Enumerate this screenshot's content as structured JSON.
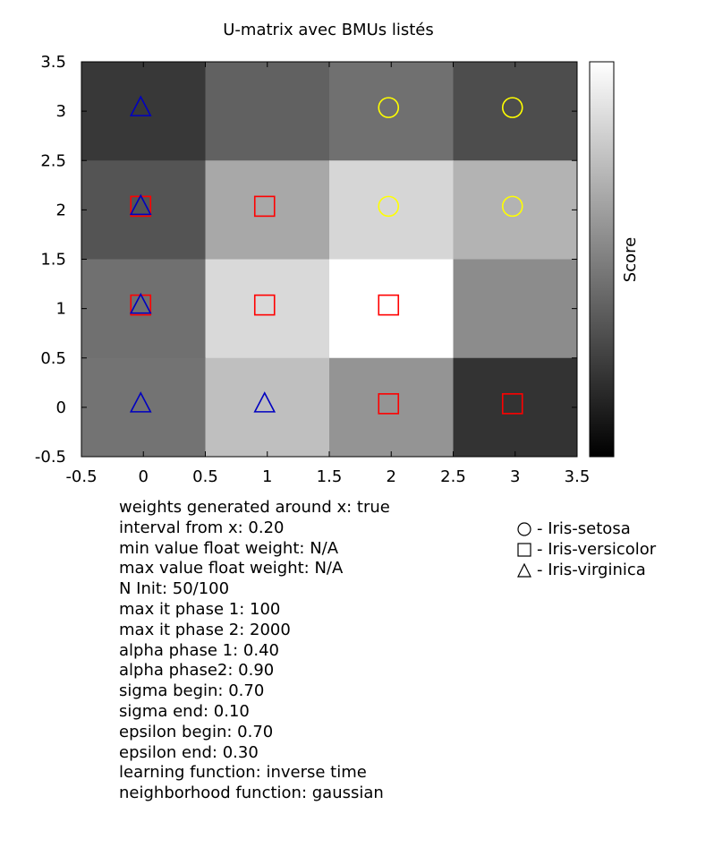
{
  "chart_data": {
    "type": "heatmap",
    "title": "U-matrix avec BMUs listés",
    "colorbar_label": "Score",
    "xlim": [
      -0.5,
      3.5
    ],
    "ylim": [
      -0.5,
      3.5
    ],
    "x_ticks": [
      "-0.5",
      "0",
      "0.5",
      "1",
      "1.5",
      "2",
      "2.5",
      "3",
      "3.5"
    ],
    "y_ticks": [
      "-0.5",
      "0",
      "0.5",
      "1",
      "1.5",
      "2",
      "2.5",
      "3",
      "3.5"
    ],
    "x": [
      0,
      1,
      2,
      3
    ],
    "y": [
      0,
      1,
      2,
      3
    ],
    "gray_levels": [
      [
        0.22,
        0.38,
        0.44,
        0.3
      ],
      [
        0.33,
        0.66,
        0.84,
        0.7
      ],
      [
        0.44,
        0.85,
        1.0,
        0.55
      ],
      [
        0.45,
        0.75,
        0.58,
        0.2
      ]
    ],
    "bmu_markers": [
      {
        "x": 0,
        "y": 3,
        "class": "Iris-virginica"
      },
      {
        "x": 2,
        "y": 3,
        "class": "Iris-setosa"
      },
      {
        "x": 3,
        "y": 3,
        "class": "Iris-setosa"
      },
      {
        "x": 0,
        "y": 2,
        "class": "Iris-versicolor"
      },
      {
        "x": 0,
        "y": 2,
        "class": "Iris-virginica"
      },
      {
        "x": 1,
        "y": 2,
        "class": "Iris-versicolor"
      },
      {
        "x": 2,
        "y": 2,
        "class": "Iris-setosa"
      },
      {
        "x": 3,
        "y": 2,
        "class": "Iris-setosa"
      },
      {
        "x": 0,
        "y": 1,
        "class": "Iris-versicolor"
      },
      {
        "x": 0,
        "y": 1,
        "class": "Iris-virginica"
      },
      {
        "x": 1,
        "y": 1,
        "class": "Iris-versicolor"
      },
      {
        "x": 2,
        "y": 1,
        "class": "Iris-versicolor"
      },
      {
        "x": 0,
        "y": 0,
        "class": "Iris-virginica"
      },
      {
        "x": 1,
        "y": 0,
        "class": "Iris-virginica"
      },
      {
        "x": 2,
        "y": 0,
        "class": "Iris-versicolor"
      },
      {
        "x": 3,
        "y": 0,
        "class": "Iris-versicolor"
      }
    ],
    "legend": [
      {
        "symbol": "circle",
        "label": "- Iris-setosa",
        "class": "Iris-setosa"
      },
      {
        "symbol": "square",
        "label": "- Iris-versicolor",
        "class": "Iris-versicolor"
      },
      {
        "symbol": "triangle",
        "label": "- Iris-virginica",
        "class": "Iris-virginica"
      }
    ],
    "class_colors": {
      "Iris-setosa": "#ffff00",
      "Iris-versicolor": "#ff0000",
      "Iris-virginica": "#0000c0"
    },
    "legend_placement": "bottom-right",
    "grid": false
  },
  "parameters": [
    "weights generated around x: true",
    "interval from x: 0.20",
    "min value float weight: N/A",
    "max value float weight: N/A",
    "N Init: 50/100",
    "max it phase 1: 100",
    "max it phase 2: 2000",
    "alpha phase 1: 0.40",
    "alpha phase2: 0.90",
    "sigma begin: 0.70",
    "sigma end: 0.10",
    "epsilon begin: 0.70",
    "epsilon end: 0.30",
    "learning function: inverse time",
    "neighborhood function: gaussian"
  ]
}
